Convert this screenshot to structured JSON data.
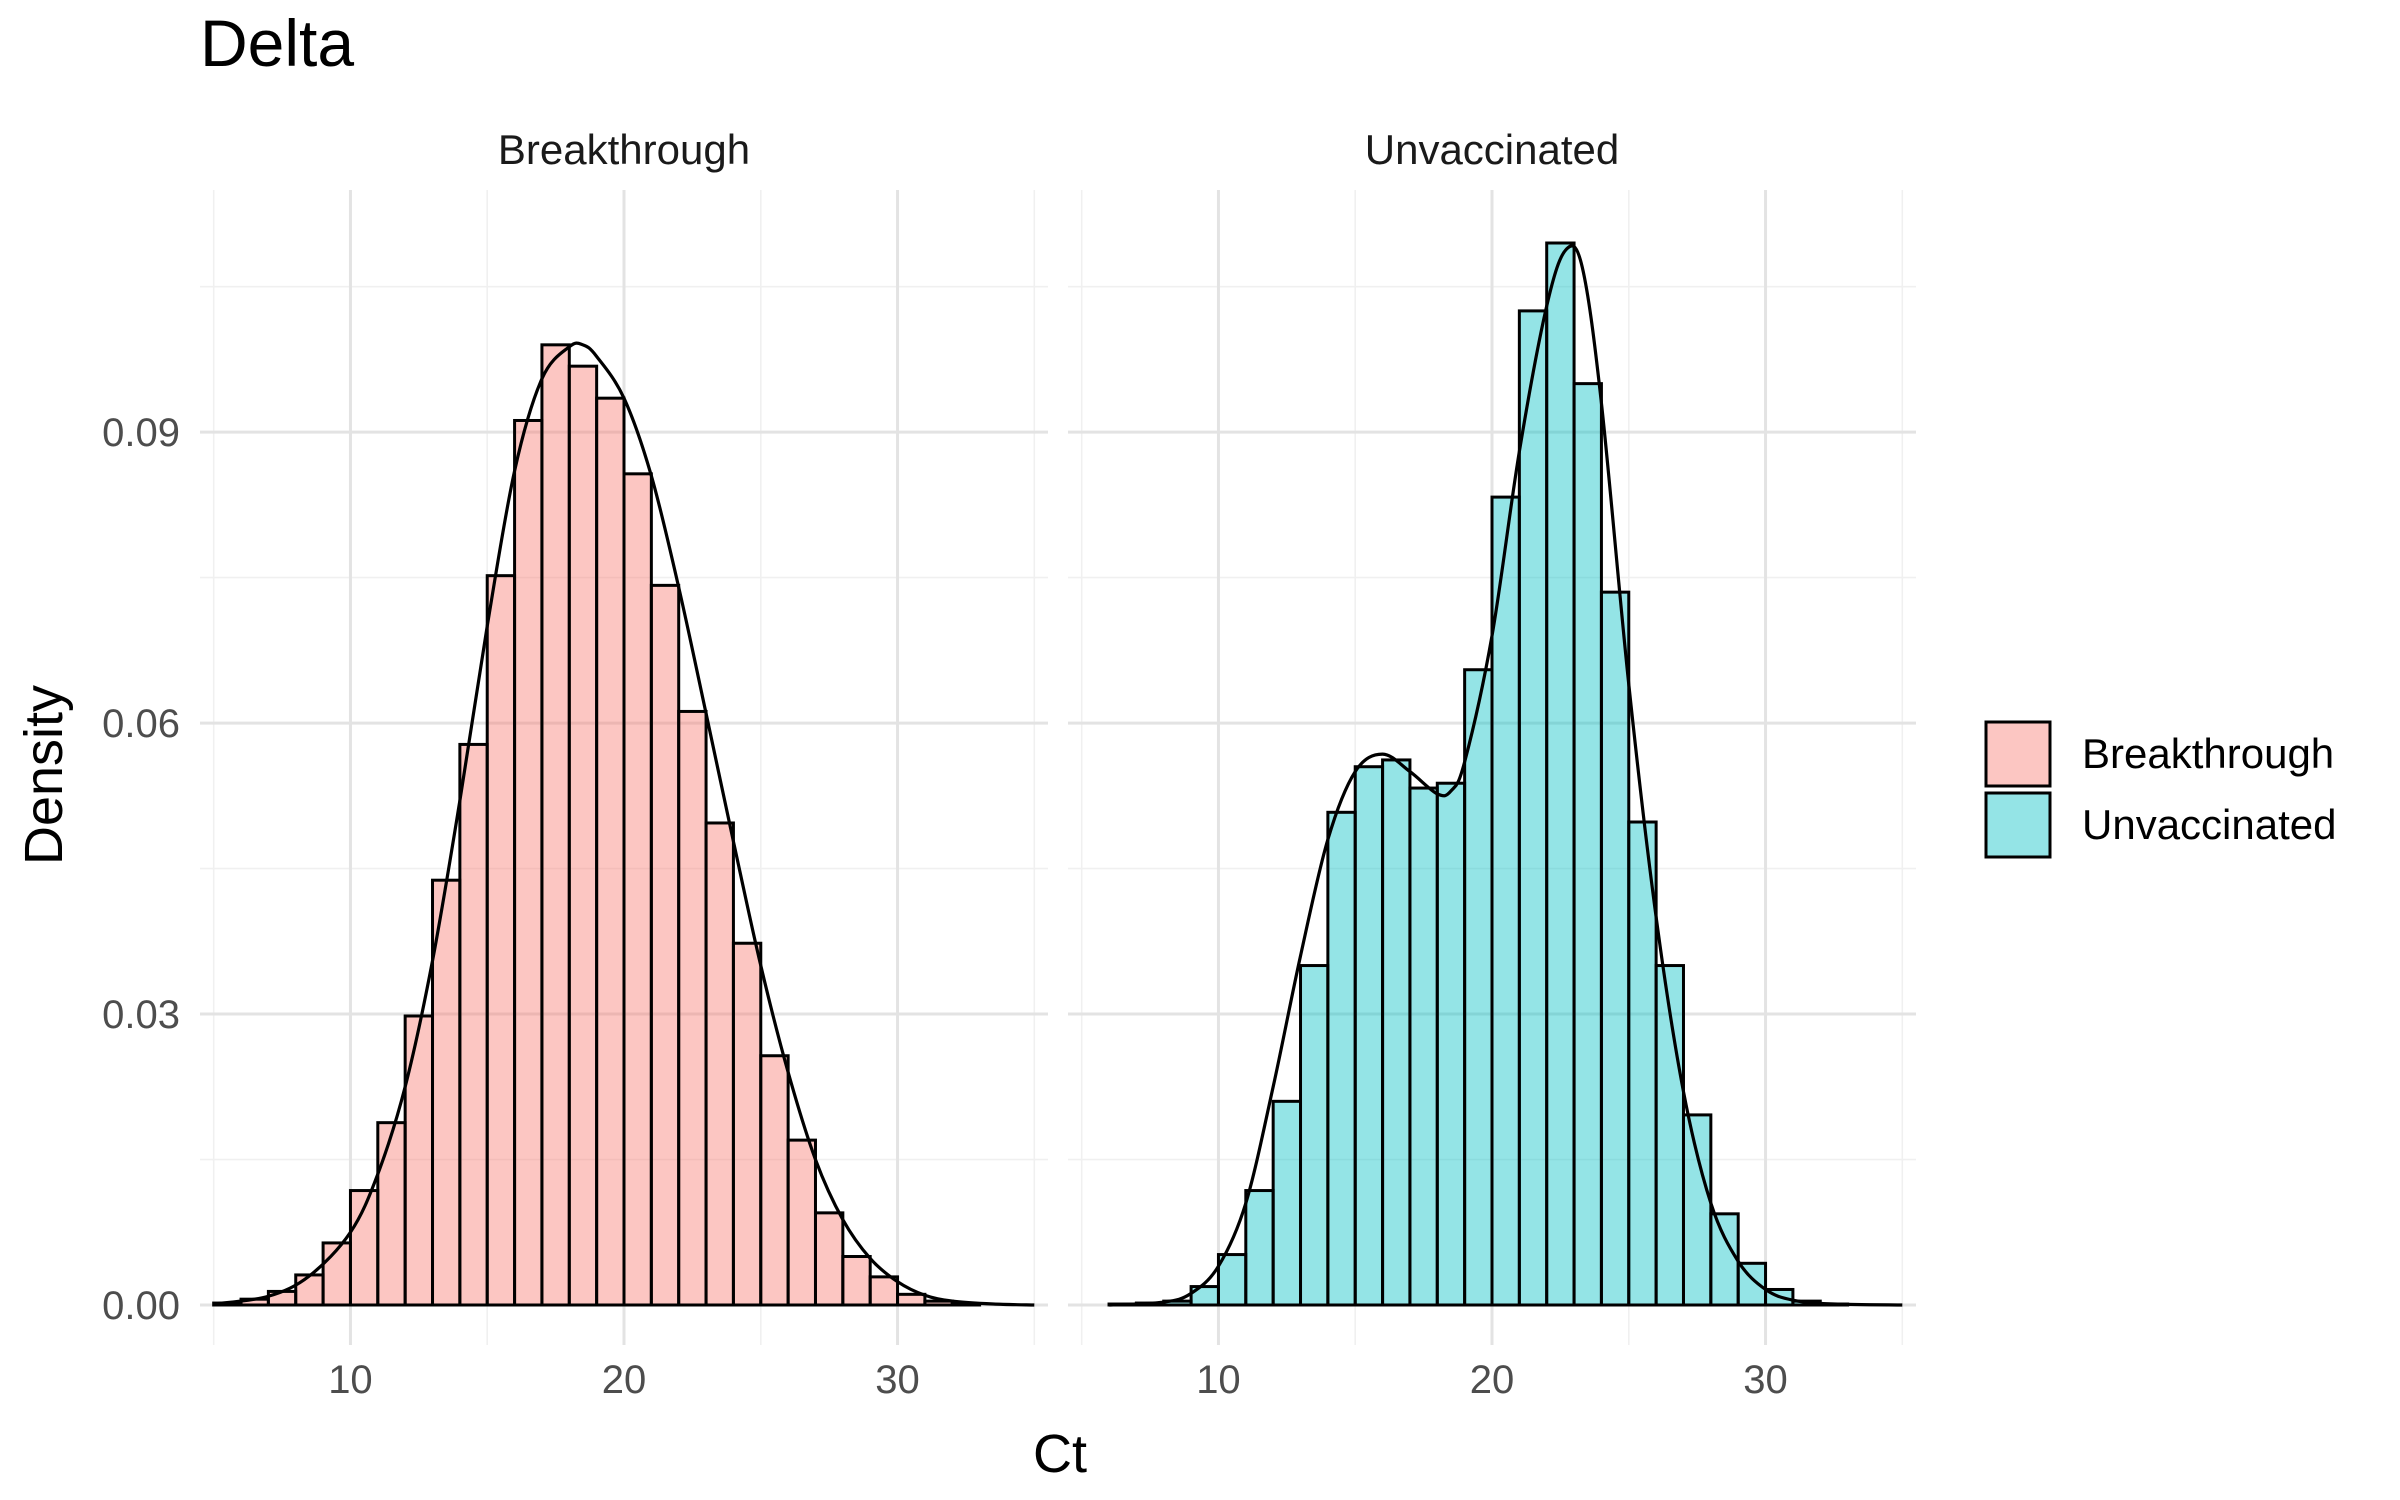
{
  "chart_data": {
    "type": "bar",
    "title": "Delta",
    "xlabel": "Ct",
    "ylabel": "Density",
    "xlim": [
      4.5,
      35.5
    ],
    "ylim": [
      0,
      0.1095
    ],
    "x_ticks": [
      10,
      20,
      30
    ],
    "x_tick_labels": [
      "10",
      "20",
      "30"
    ],
    "y_ticks": [
      0,
      0.03,
      0.06,
      0.09
    ],
    "y_tick_labels": [
      "0.00",
      "0.03",
      "0.06",
      "0.09"
    ],
    "grid": true,
    "legend": {
      "position": "right",
      "entries": [
        {
          "label": "Breakthrough",
          "color": "#F8766D"
        },
        {
          "label": "Unvaccinated",
          "color": "#00BFC4"
        }
      ]
    },
    "bin_width": 1,
    "panels": [
      {
        "name": "Breakthrough",
        "fill_color": "#F8766D",
        "bins": [
          {
            "x0": 5,
            "v": 0.0002
          },
          {
            "x0": 6,
            "v": 0.0006
          },
          {
            "x0": 7,
            "v": 0.0014
          },
          {
            "x0": 8,
            "v": 0.0031
          },
          {
            "x0": 9,
            "v": 0.0064
          },
          {
            "x0": 10,
            "v": 0.0118
          },
          {
            "x0": 11,
            "v": 0.0188
          },
          {
            "x0": 12,
            "v": 0.0298
          },
          {
            "x0": 13,
            "v": 0.0438
          },
          {
            "x0": 14,
            "v": 0.0578
          },
          {
            "x0": 15,
            "v": 0.0752
          },
          {
            "x0": 16,
            "v": 0.0912
          },
          {
            "x0": 17,
            "v": 0.099
          },
          {
            "x0": 18,
            "v": 0.0968
          },
          {
            "x0": 19,
            "v": 0.0935
          },
          {
            "x0": 20,
            "v": 0.0857
          },
          {
            "x0": 21,
            "v": 0.0742
          },
          {
            "x0": 22,
            "v": 0.0612
          },
          {
            "x0": 23,
            "v": 0.0497
          },
          {
            "x0": 24,
            "v": 0.0373
          },
          {
            "x0": 25,
            "v": 0.0257
          },
          {
            "x0": 26,
            "v": 0.017
          },
          {
            "x0": 27,
            "v": 0.0095
          },
          {
            "x0": 28,
            "v": 0.005
          },
          {
            "x0": 29,
            "v": 0.0029
          },
          {
            "x0": 30,
            "v": 0.0011
          },
          {
            "x0": 31,
            "v": 0.0004
          },
          {
            "x0": 32,
            "v": 0.0001
          }
        ],
        "density": [
          [
            5.0,
            0.0001
          ],
          [
            7.0,
            0.0009
          ],
          [
            8.5,
            0.003
          ],
          [
            10.0,
            0.0075
          ],
          [
            11.0,
            0.0135
          ],
          [
            12.0,
            0.0225
          ],
          [
            13.0,
            0.0355
          ],
          [
            14.0,
            0.052
          ],
          [
            15.0,
            0.07
          ],
          [
            16.0,
            0.086
          ],
          [
            17.0,
            0.0955
          ],
          [
            18.0,
            0.0988
          ],
          [
            18.5,
            0.099
          ],
          [
            19.0,
            0.0978
          ],
          [
            20.0,
            0.0935
          ],
          [
            21.0,
            0.0855
          ],
          [
            22.0,
            0.074
          ],
          [
            23.0,
            0.061
          ],
          [
            24.0,
            0.0478
          ],
          [
            25.0,
            0.035
          ],
          [
            26.0,
            0.024
          ],
          [
            27.0,
            0.015
          ],
          [
            28.0,
            0.0088
          ],
          [
            29.0,
            0.0048
          ],
          [
            30.0,
            0.0024
          ],
          [
            31.0,
            0.001
          ],
          [
            32.0,
            0.0004
          ],
          [
            33.5,
            0.0001
          ],
          [
            35.0,
            0.0
          ]
        ]
      },
      {
        "name": "Unvaccinated",
        "fill_color": "#00BFC4",
        "bins": [
          {
            "x0": 6,
            "v": 0.0001
          },
          {
            "x0": 7,
            "v": 0.0002
          },
          {
            "x0": 8,
            "v": 0.0004
          },
          {
            "x0": 9,
            "v": 0.0019
          },
          {
            "x0": 10,
            "v": 0.0052
          },
          {
            "x0": 11,
            "v": 0.0118
          },
          {
            "x0": 12,
            "v": 0.021
          },
          {
            "x0": 13,
            "v": 0.035
          },
          {
            "x0": 14,
            "v": 0.0508
          },
          {
            "x0": 15,
            "v": 0.0555
          },
          {
            "x0": 16,
            "v": 0.0562
          },
          {
            "x0": 17,
            "v": 0.0533
          },
          {
            "x0": 18,
            "v": 0.0538
          },
          {
            "x0": 19,
            "v": 0.0655
          },
          {
            "x0": 20,
            "v": 0.0833
          },
          {
            "x0": 21,
            "v": 0.1025
          },
          {
            "x0": 22,
            "v": 0.1095
          },
          {
            "x0": 23,
            "v": 0.095
          },
          {
            "x0": 24,
            "v": 0.0735
          },
          {
            "x0": 25,
            "v": 0.0498
          },
          {
            "x0": 26,
            "v": 0.035
          },
          {
            "x0": 27,
            "v": 0.0196
          },
          {
            "x0": 28,
            "v": 0.0094
          },
          {
            "x0": 29,
            "v": 0.0043
          },
          {
            "x0": 30,
            "v": 0.0016
          },
          {
            "x0": 31,
            "v": 0.0004
          },
          {
            "x0": 32,
            "v": 0.0001
          }
        ],
        "density": [
          [
            6.0,
            0.0
          ],
          [
            8.0,
            0.0003
          ],
          [
            9.0,
            0.0012
          ],
          [
            10.0,
            0.004
          ],
          [
            11.0,
            0.0105
          ],
          [
            12.0,
            0.0225
          ],
          [
            13.0,
            0.036
          ],
          [
            14.0,
            0.048
          ],
          [
            15.0,
            0.055
          ],
          [
            16.0,
            0.0568
          ],
          [
            17.0,
            0.055
          ],
          [
            18.0,
            0.0527
          ],
          [
            18.5,
            0.053
          ],
          [
            19.0,
            0.056
          ],
          [
            20.0,
            0.069
          ],
          [
            21.0,
            0.088
          ],
          [
            22.0,
            0.103
          ],
          [
            22.7,
            0.1088
          ],
          [
            23.3,
            0.107
          ],
          [
            24.0,
            0.093
          ],
          [
            25.0,
            0.064
          ],
          [
            26.0,
            0.04
          ],
          [
            27.0,
            0.022
          ],
          [
            28.0,
            0.0105
          ],
          [
            29.0,
            0.0045
          ],
          [
            30.0,
            0.0016
          ],
          [
            31.0,
            0.0005
          ],
          [
            32.5,
            0.0001
          ],
          [
            35.0,
            0.0
          ]
        ]
      }
    ]
  }
}
